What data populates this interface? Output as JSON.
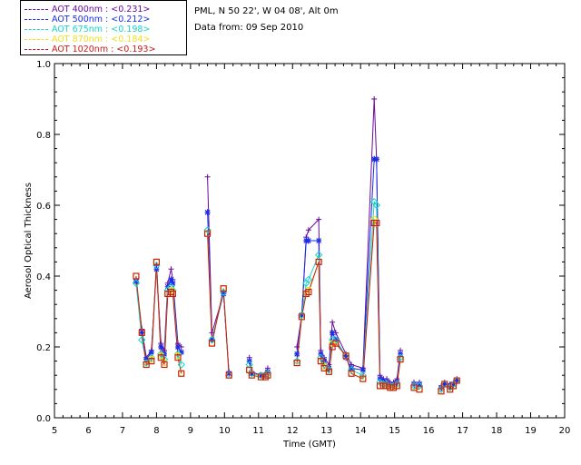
{
  "info": {
    "site": "PML, N 50 22', W 04 08', Alt 0m",
    "date": "Data from: 09 Sep 2010"
  },
  "legend": [
    {
      "label": "AOT  400nm : <0.231>",
      "color": "#6a0a9c"
    },
    {
      "label": "AOT  500nm : <0.212>",
      "color": "#1a2ee8"
    },
    {
      "label": "AOT  675nm : <0.198>",
      "color": "#16d4c8"
    },
    {
      "label": "AOT  870nm : <0.184>",
      "color": "#f0e020"
    },
    {
      "label": "AOT 1020nm : <0.193>",
      "color": "#c81a1a"
    }
  ],
  "chart_data": {
    "type": "line",
    "title": "",
    "xlabel": "Time (GMT)",
    "ylabel": "Aerosol Optical Thickness",
    "xlim": [
      5,
      20
    ],
    "ylim": [
      0.0,
      1.0
    ],
    "xticks": [
      "5",
      "6",
      "7",
      "8",
      "9",
      "10",
      "11",
      "12",
      "13",
      "14",
      "15",
      "16",
      "17",
      "18",
      "19",
      "20"
    ],
    "yticks": [
      "0.0",
      "0.2",
      "0.4",
      "0.6",
      "0.8",
      "1.0"
    ],
    "segments": [
      {
        "x": [
          7.4,
          7.57,
          7.7,
          7.85,
          8.0,
          8.13,
          8.23,
          8.33,
          8.43,
          8.48,
          8.63,
          8.73
        ],
        "series": [
          {
            "name": "AOT 400nm",
            "values": [
              0.39,
              0.25,
              0.17,
              0.19,
              0.43,
              0.21,
              0.19,
              0.38,
              0.42,
              0.39,
              0.21,
              0.2
            ]
          },
          {
            "name": "AOT 500nm",
            "values": [
              0.385,
              0.24,
              0.165,
              0.185,
              0.42,
              0.2,
              0.18,
              0.37,
              0.39,
              0.38,
              0.2,
              0.185
            ]
          },
          {
            "name": "AOT 675nm",
            "values": [
              0.38,
              0.22,
              0.155,
              0.17,
              0.43,
              0.18,
              0.165,
              0.36,
              0.37,
              0.36,
              0.18,
              0.15
            ]
          },
          {
            "name": "AOT 870nm",
            "values": [
              0.4,
              0.24,
              0.15,
              0.165,
              0.44,
              0.175,
              0.155,
              0.35,
              0.36,
              0.355,
              0.175,
              0.125
            ]
          },
          {
            "name": "AOT 1020nm",
            "values": [
              0.4,
              0.24,
              0.15,
              0.16,
              0.44,
              0.17,
              0.15,
              0.35,
              0.355,
              0.35,
              0.17,
              0.125
            ]
          }
        ]
      },
      {
        "x": [
          9.5,
          9.63,
          9.97,
          10.13
        ],
        "series": [
          {
            "name": "AOT 400nm",
            "values": [
              0.68,
              0.24,
              0.35,
              0.13
            ]
          },
          {
            "name": "AOT 500nm",
            "values": [
              0.58,
              0.22,
              0.35,
              0.125
            ]
          },
          {
            "name": "AOT 675nm",
            "values": [
              0.53,
              0.22,
              0.355,
              0.12
            ]
          },
          {
            "name": "AOT 870nm",
            "values": [
              0.52,
              0.21,
              0.365,
              0.12
            ]
          },
          {
            "name": "AOT 1020nm",
            "values": [
              0.52,
              0.21,
              0.365,
              0.12
            ]
          }
        ]
      },
      {
        "x": [
          10.73,
          10.8,
          11.07,
          11.2,
          11.27
        ],
        "series": [
          {
            "name": "AOT 400nm",
            "values": [
              0.17,
              0.13,
              0.12,
              0.125,
              0.14
            ]
          },
          {
            "name": "AOT 500nm",
            "values": [
              0.16,
              0.125,
              0.12,
              0.12,
              0.13
            ]
          },
          {
            "name": "AOT 675nm",
            "values": [
              0.15,
              0.125,
              0.12,
              0.12,
              0.125
            ]
          },
          {
            "name": "AOT 870nm",
            "values": [
              0.135,
              0.12,
              0.115,
              0.115,
              0.12
            ]
          },
          {
            "name": "AOT 1020nm",
            "values": [
              0.135,
              0.12,
              0.115,
              0.115,
              0.12
            ]
          }
        ]
      },
      {
        "x": [
          12.13,
          12.27,
          12.4,
          12.47,
          12.77,
          12.83,
          12.93,
          13.07,
          13.17,
          13.27,
          13.57,
          13.73,
          14.07,
          14.4,
          14.47,
          14.57,
          14.67,
          14.77,
          14.87,
          14.97,
          15.07,
          15.17
        ],
        "series": [
          {
            "name": "AOT 400nm",
            "values": [
              0.2,
              0.29,
              0.51,
              0.53,
              0.56,
              0.19,
              0.17,
              0.15,
              0.27,
              0.24,
              0.18,
              0.15,
              0.14,
              0.9,
              0.73,
              0.12,
              0.11,
              0.11,
              0.1,
              0.1,
              0.11,
              0.19
            ]
          },
          {
            "name": "AOT 500nm",
            "values": [
              0.18,
              0.29,
              0.5,
              0.5,
              0.5,
              0.18,
              0.16,
              0.14,
              0.24,
              0.22,
              0.17,
              0.14,
              0.135,
              0.73,
              0.73,
              0.11,
              0.105,
              0.1,
              0.095,
              0.095,
              0.1,
              0.18
            ]
          },
          {
            "name": "AOT 675nm",
            "values": [
              0.16,
              0.29,
              0.38,
              0.39,
              0.46,
              0.17,
              0.15,
              0.135,
              0.22,
              0.22,
              0.175,
              0.135,
              0.12,
              0.61,
              0.6,
              0.1,
              0.095,
              0.095,
              0.09,
              0.09,
              0.095,
              0.17
            ]
          },
          {
            "name": "AOT 870nm",
            "values": [
              0.155,
              0.285,
              0.35,
              0.36,
              0.44,
              0.16,
              0.145,
              0.13,
              0.21,
              0.21,
              0.175,
              0.125,
              0.11,
              0.56,
              0.55,
              0.09,
              0.09,
              0.09,
              0.085,
              0.085,
              0.09,
              0.165
            ]
          },
          {
            "name": "AOT 1020nm",
            "values": [
              0.155,
              0.285,
              0.35,
              0.355,
              0.44,
              0.16,
              0.14,
              0.13,
              0.2,
              0.21,
              0.175,
              0.125,
              0.11,
              0.55,
              0.55,
              0.09,
              0.09,
              0.09,
              0.085,
              0.085,
              0.09,
              0.165
            ]
          }
        ]
      },
      {
        "x": [
          15.57,
          15.73
        ],
        "series": [
          {
            "name": "AOT 400nm",
            "values": [
              0.1,
              0.1
            ]
          },
          {
            "name": "AOT 500nm",
            "values": [
              0.095,
              0.095
            ]
          },
          {
            "name": "AOT 675nm",
            "values": [
              0.09,
              0.09
            ]
          },
          {
            "name": "AOT 870nm",
            "values": [
              0.085,
              0.08
            ]
          },
          {
            "name": "AOT 1020nm",
            "values": [
              0.085,
              0.08
            ]
          }
        ]
      },
      {
        "x": [
          16.37,
          16.47,
          16.63,
          16.73,
          16.83
        ],
        "series": [
          {
            "name": "AOT 400nm",
            "values": [
              0.09,
              0.1,
              0.095,
              0.1,
              0.11
            ]
          },
          {
            "name": "AOT 500nm",
            "values": [
              0.085,
              0.095,
              0.09,
              0.095,
              0.105
            ]
          },
          {
            "name": "AOT 675nm",
            "values": [
              0.08,
              0.095,
              0.085,
              0.095,
              0.105
            ]
          },
          {
            "name": "AOT 870nm",
            "values": [
              0.075,
              0.095,
              0.08,
              0.09,
              0.105
            ]
          },
          {
            "name": "AOT 1020nm",
            "values": [
              0.075,
              0.095,
              0.08,
              0.09,
              0.105
            ]
          }
        ]
      }
    ]
  }
}
